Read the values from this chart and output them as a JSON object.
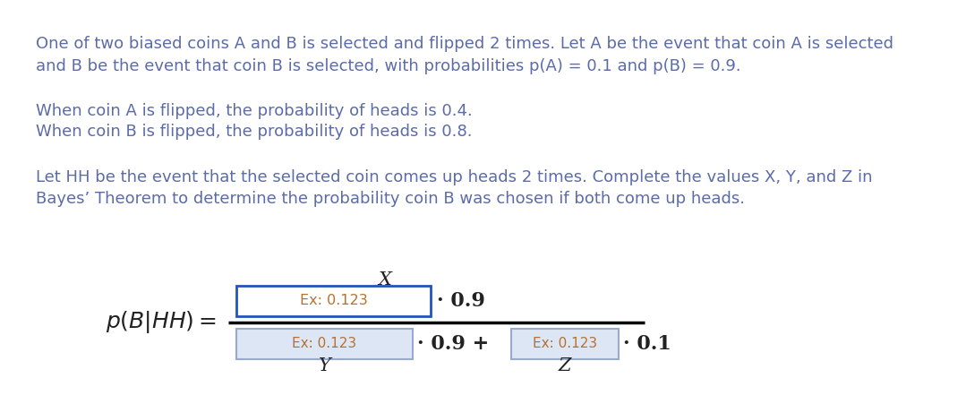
{
  "background_color": "#ffffff",
  "brown": "#6B6BBB",
  "dark": "#222222",
  "line1": "One of two biased coins A and B is selected and flipped 2 times. Let A be the event that coin A is selected",
  "line2": "and B be the event that coin B is selected, with probabilities p(A) = 0.1 and p(B) = 0.9.",
  "line3": "When coin A is flipped, the probability of heads is 0.4.",
  "line4": "When coin B is flipped, the probability of heads is 0.8.",
  "line5": "Let HH be the event that the selected coin comes up heads 2 times. Complete the values X, Y, and Z in",
  "line6": "Bayes’ Theorem to determine the probability coin B was chosen if both come up heads.",
  "label_X": "X",
  "label_Y": "Y",
  "label_Z": "Z",
  "placeholder": "Ex: 0.123",
  "box_color_top": "#2255bb",
  "box_fill_top": "#ffffff",
  "box_color_bot": "#99aacc",
  "box_fill_bot": "#dde6f5",
  "lhs": "p(B∣HH) =",
  "dot09_num": "· 0.9",
  "dot09_denom": "· 0.9 +",
  "dot01_denom": "· 0.1"
}
